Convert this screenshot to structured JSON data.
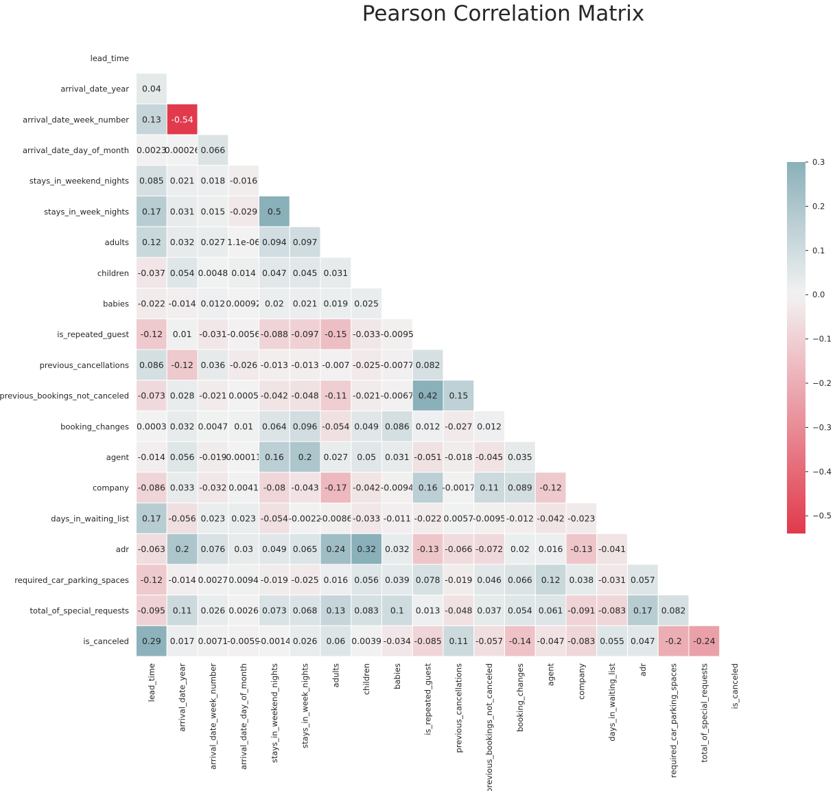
{
  "chart_data": {
    "type": "heatmap",
    "title": "Pearson Correlation Matrix",
    "xlabel": "",
    "ylabel": "",
    "mask": "upper-triangle-including-diagonal",
    "labels": [
      "lead_time",
      "arrival_date_year",
      "arrival_date_week_number",
      "arrival_date_day_of_month",
      "stays_in_weekend_nights",
      "stays_in_week_nights",
      "adults",
      "children",
      "babies",
      "is_repeated_guest",
      "previous_cancellations",
      "previous_bookings_not_canceled",
      "booking_changes",
      "agent",
      "company",
      "days_in_waiting_list",
      "adr",
      "required_car_parking_spaces",
      "total_of_special_requests",
      "is_canceled"
    ],
    "values": [
      [],
      [
        0.04
      ],
      [
        0.13,
        -0.54
      ],
      [
        0.0023,
        0.00026,
        0.066
      ],
      [
        0.085,
        0.021,
        0.018,
        -0.016
      ],
      [
        0.17,
        0.031,
        0.015,
        -0.029,
        0.5
      ],
      [
        0.12,
        0.032,
        0.027,
        "1.1e-06",
        0.094,
        0.097
      ],
      [
        -0.037,
        0.054,
        0.0048,
        0.014,
        0.047,
        0.045,
        0.031
      ],
      [
        -0.022,
        -0.014,
        0.012,
        0.00092,
        0.02,
        0.021,
        0.019,
        0.025
      ],
      [
        -0.12,
        0.01,
        -0.031,
        -0.0056,
        -0.088,
        -0.097,
        -0.15,
        -0.033,
        -0.0095
      ],
      [
        0.086,
        -0.12,
        0.036,
        -0.026,
        -0.013,
        -0.013,
        -0.007,
        -0.025,
        -0.0077,
        0.082
      ],
      [
        -0.073,
        0.028,
        -0.021,
        0.0005,
        -0.042,
        -0.048,
        -0.11,
        -0.021,
        -0.0067,
        0.42,
        0.15
      ],
      [
        0.0003,
        0.032,
        0.0047,
        0.01,
        0.064,
        0.096,
        -0.054,
        0.049,
        0.086,
        0.012,
        -0.027,
        0.012
      ],
      [
        -0.014,
        0.056,
        -0.019,
        0.00011,
        0.16,
        0.2,
        0.027,
        0.05,
        0.031,
        -0.051,
        -0.018,
        -0.045,
        0.035
      ],
      [
        -0.086,
        0.033,
        -0.032,
        0.0041,
        -0.08,
        -0.043,
        -0.17,
        -0.042,
        -0.0094,
        0.16,
        -0.0017,
        0.11,
        0.089,
        -0.12
      ],
      [
        0.17,
        -0.056,
        0.023,
        0.023,
        -0.054,
        -0.0022,
        -0.0086,
        -0.033,
        -0.011,
        -0.022,
        0.0057,
        -0.0095,
        -0.012,
        -0.042,
        -0.023
      ],
      [
        -0.063,
        0.2,
        0.076,
        0.03,
        0.049,
        0.065,
        0.24,
        0.32,
        0.032,
        -0.13,
        -0.066,
        -0.072,
        0.02,
        0.016,
        -0.13,
        -0.041
      ],
      [
        -0.12,
        -0.014,
        0.0027,
        0.0094,
        -0.019,
        -0.025,
        0.016,
        0.056,
        0.039,
        0.078,
        -0.019,
        0.046,
        0.066,
        0.12,
        0.038,
        -0.031,
        0.057
      ],
      [
        -0.095,
        0.11,
        0.026,
        0.0026,
        0.073,
        0.068,
        0.13,
        0.083,
        0.1,
        0.013,
        -0.048,
        0.037,
        0.054,
        0.061,
        -0.091,
        -0.083,
        0.17,
        0.082
      ],
      [
        0.29,
        0.017,
        0.0071,
        -0.0059,
        -0.0014,
        0.026,
        0.06,
        0.0039,
        -0.034,
        -0.085,
        0.11,
        -0.057,
        -0.14,
        -0.047,
        -0.083,
        0.055,
        0.047,
        -0.2,
        -0.24
      ]
    ],
    "colorbar": {
      "vmin": -0.54,
      "vmax": 0.3,
      "ticks": [
        0.3,
        0.2,
        0.1,
        0.0,
        -0.1,
        -0.2,
        -0.3,
        -0.4,
        -0.5
      ],
      "tick_labels": [
        "0.3",
        "0.2",
        "0.1",
        "0.0",
        "−0.1",
        "−0.2",
        "−0.3",
        "−0.4",
        "−0.5"
      ],
      "colormap": "diverging",
      "negative_color": "#e13a4c",
      "center_color": "#f2f2f2",
      "positive_color": "#8ab0b9"
    }
  }
}
